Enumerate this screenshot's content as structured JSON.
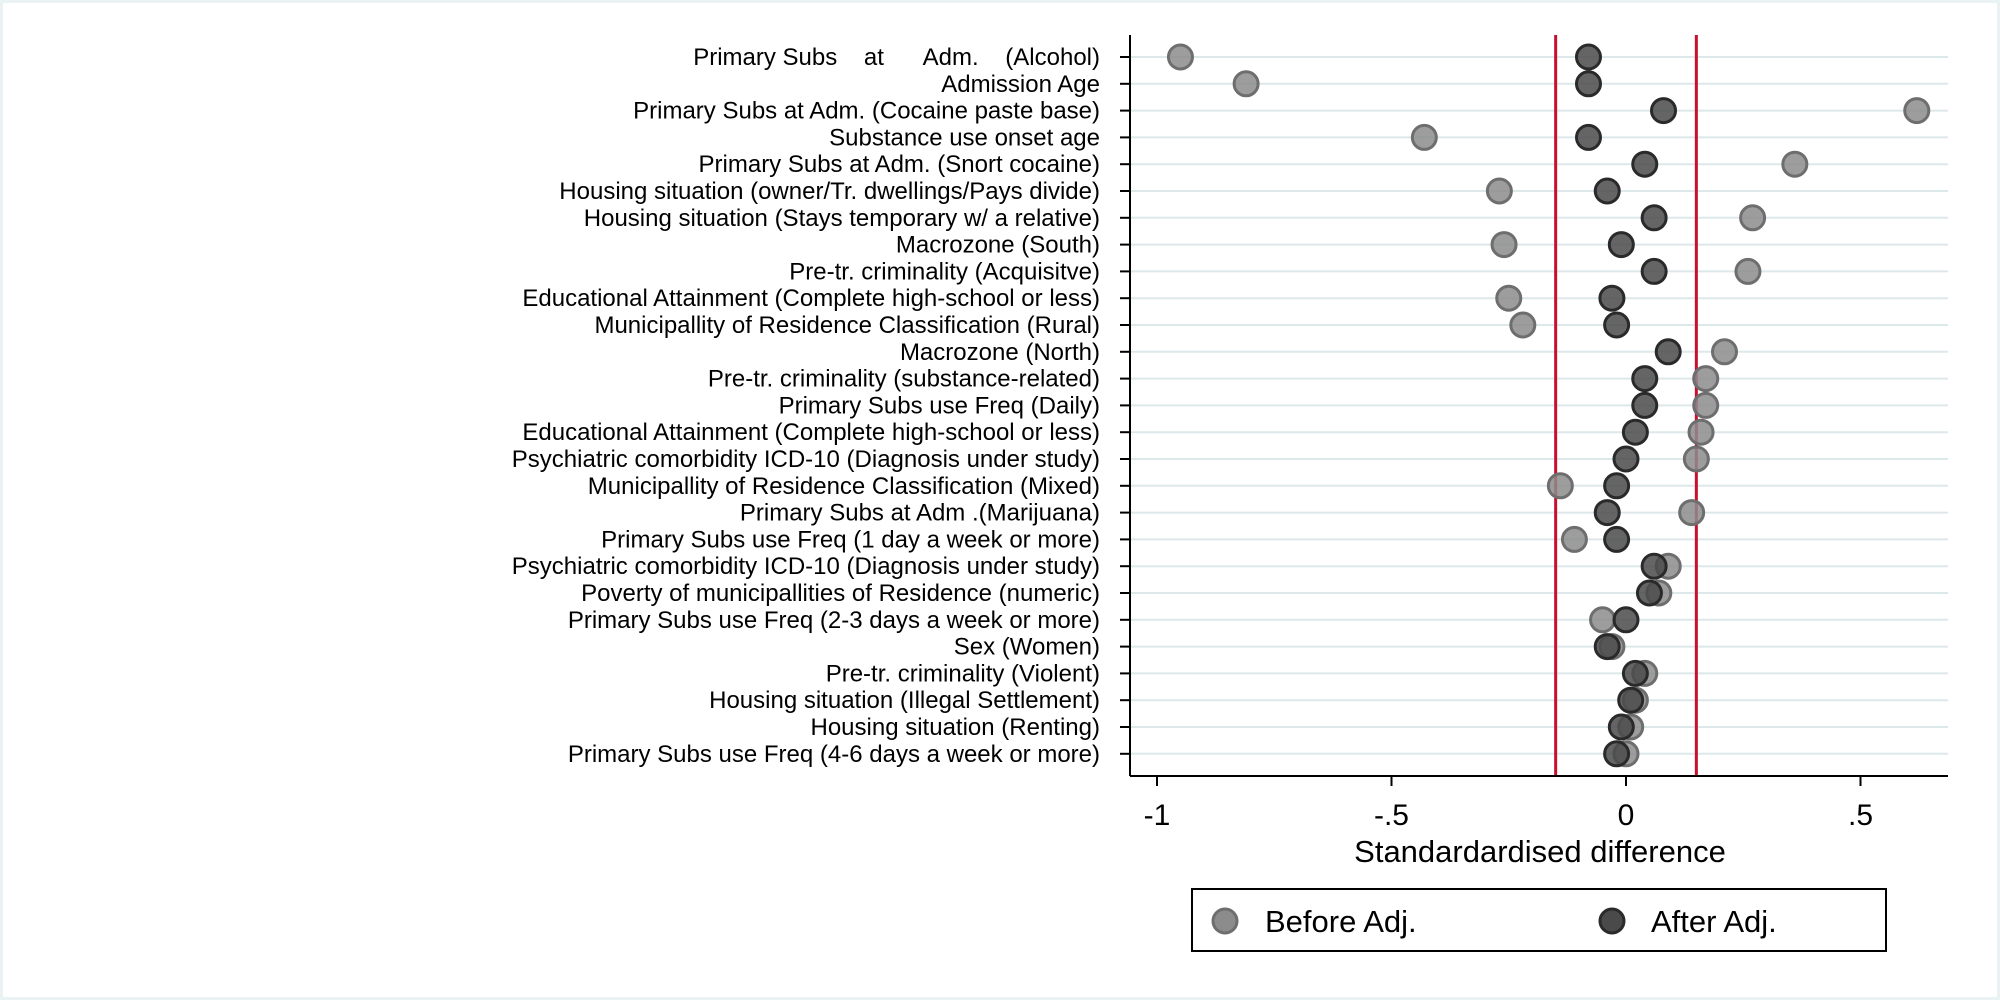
{
  "chart_data": {
    "type": "scatter",
    "xlabel": "Standardardised difference",
    "xlim": [
      -1.02,
      0.68
    ],
    "xticks": [
      -1,
      -0.5,
      0,
      0.5
    ],
    "xtick_labels": [
      "-1",
      "-.5",
      "0",
      ".5"
    ],
    "reference_lines": [
      -0.15,
      0.15
    ],
    "reference_line_color": "#c8102e",
    "grid": "horizontal",
    "legend_position": "bottom",
    "categories": [
      "Primary Subs    at      Adm.    (Alcohol)",
      "Admission Age",
      "Primary Subs at Adm. (Cocaine paste base)",
      "Substance use onset age",
      "Primary Subs at Adm. (Snort cocaine)",
      "Housing situation (owner/Tr. dwellings/Pays divide)",
      "Housing situation (Stays temporary w/ a relative)",
      "Macrozone (South)",
      "Pre-tr. criminality (Acquisitve)",
      "Educational Attainment (Complete high-school or less)",
      "Municipallity of Residence Classification (Rural)",
      "Macrozone (North)",
      "Pre-tr. criminality (substance-related)",
      "Primary Subs use Freq (Daily)",
      "Educational Attainment (Complete high-school or less)",
      "Psychiatric comorbidity ICD-10 (Diagnosis under study)",
      "Municipallity of Residence Classification (Mixed)",
      "Primary Subs at Adm .(Marijuana)",
      "Primary Subs use Freq (1 day a week or more)",
      "Psychiatric comorbidity ICD-10 (Diagnosis under study)",
      "Poverty of municipallities of Residence (numeric)",
      "Primary Subs use Freq (2-3 days a week or more)",
      "Sex (Women)",
      "Pre-tr. criminality (Violent)",
      "Housing situation (Illegal Settlement)",
      "Housing situation (Renting)",
      "Primary Subs use Freq (4-6 days a week or more)"
    ],
    "series": [
      {
        "name": "Before Adj.",
        "color": "#8c8c8c",
        "values": [
          -0.95,
          -0.81,
          0.62,
          -0.43,
          0.36,
          -0.27,
          0.27,
          -0.26,
          0.26,
          -0.25,
          -0.22,
          0.21,
          0.17,
          0.17,
          0.16,
          0.15,
          -0.14,
          0.14,
          -0.11,
          0.09,
          0.07,
          -0.05,
          -0.03,
          0.04,
          0.02,
          0.01,
          0.0
        ]
      },
      {
        "name": "After Adj.",
        "color": "#4a4a4a",
        "values": [
          -0.08,
          -0.08,
          0.08,
          -0.08,
          0.04,
          -0.04,
          0.06,
          -0.01,
          0.06,
          -0.03,
          -0.02,
          0.09,
          0.04,
          0.04,
          0.02,
          0.0,
          -0.02,
          -0.04,
          -0.02,
          0.06,
          0.05,
          0.0,
          -0.04,
          0.02,
          0.01,
          -0.01,
          -0.02
        ]
      }
    ]
  }
}
